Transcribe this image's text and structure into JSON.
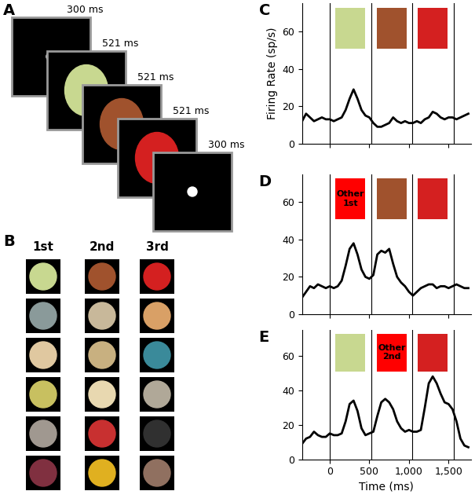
{
  "diagram": {
    "panel": "A",
    "frames": [
      {
        "duration": "300 ms"
      },
      {
        "duration": "521 ms"
      },
      {
        "duration": "521 ms"
      },
      {
        "duration": "521 ms"
      },
      {
        "duration": "300 ms"
      }
    ]
  },
  "image_grid": {
    "panel": "B",
    "columns": [
      "1st",
      "2nd",
      "3rd"
    ]
  },
  "chart_data": [
    {
      "type": "line",
      "panel": "C",
      "ylabel": "Firing Rate (sp/s)",
      "color": "#000000",
      "x": [
        -350,
        -300,
        -250,
        -200,
        -150,
        -100,
        -50,
        0,
        50,
        100,
        150,
        200,
        250,
        300,
        350,
        400,
        450,
        500,
        550,
        600,
        650,
        700,
        750,
        800,
        850,
        900,
        950,
        1000,
        1050,
        1100,
        1150,
        1200,
        1250,
        1300,
        1350,
        1400,
        1450,
        1500,
        1550,
        1600,
        1650,
        1700,
        1750
      ],
      "values": [
        12,
        16,
        14,
        12,
        13,
        14,
        13,
        13,
        12,
        13,
        14,
        18,
        24,
        29,
        24,
        18,
        15,
        14,
        11,
        9,
        9,
        10,
        11,
        14,
        12,
        11,
        12,
        11,
        11,
        12,
        11,
        13,
        14,
        17,
        16,
        14,
        13,
        14,
        14,
        13,
        14,
        15,
        16
      ],
      "xlim": [
        -350,
        1780
      ],
      "ylim": [
        0,
        75
      ],
      "xticks": [
        0,
        500,
        {
          "value": 1000,
          "label": "1,000"
        },
        {
          "value": 1500,
          "label": "1,500"
        }
      ],
      "yticks": [
        0,
        20,
        40,
        60
      ],
      "tick_labels": "y",
      "stimuli": [
        {
          "start": 0,
          "end": 521,
          "color": "#c8d890"
        },
        {
          "start": 521,
          "end": 1042,
          "color": "#a0522d"
        },
        {
          "start": 1042,
          "end": 1563,
          "color": "#d42020"
        }
      ]
    },
    {
      "type": "line",
      "panel": "D",
      "color": "#000000",
      "x": [
        -350,
        -300,
        -250,
        -200,
        -150,
        -100,
        -50,
        0,
        50,
        100,
        150,
        200,
        250,
        300,
        350,
        400,
        450,
        500,
        550,
        600,
        650,
        700,
        750,
        800,
        850,
        900,
        950,
        1000,
        1050,
        1100,
        1150,
        1200,
        1250,
        1300,
        1350,
        1400,
        1450,
        1500,
        1550,
        1600,
        1650,
        1700,
        1750
      ],
      "values": [
        9,
        12,
        15,
        14,
        16,
        15,
        14,
        15,
        14,
        15,
        18,
        26,
        35,
        38,
        32,
        24,
        20,
        19,
        21,
        32,
        34,
        33,
        35,
        27,
        20,
        17,
        15,
        12,
        10,
        12,
        14,
        15,
        16,
        16,
        14,
        15,
        15,
        14,
        15,
        16,
        15,
        14,
        14
      ],
      "xlim": [
        -350,
        1780
      ],
      "ylim": [
        0,
        75
      ],
      "xticks": [
        0,
        500,
        {
          "value": 1000,
          "label": "1,000"
        },
        {
          "value": 1500,
          "label": "1,500"
        }
      ],
      "yticks": [
        0,
        20,
        40,
        60
      ],
      "tick_labels": "y",
      "stimuli": [
        {
          "start": 0,
          "end": 521,
          "color": "#ff0000",
          "label": "Other 1st"
        },
        {
          "start": 521,
          "end": 1042,
          "color": "#a0522d"
        },
        {
          "start": 1042,
          "end": 1563,
          "color": "#d42020"
        }
      ]
    },
    {
      "type": "line",
      "panel": "E",
      "xlabel": "Time (ms)",
      "color": "#000000",
      "x": [
        -350,
        -300,
        -250,
        -200,
        -150,
        -100,
        -50,
        0,
        50,
        100,
        150,
        200,
        250,
        300,
        350,
        400,
        450,
        500,
        550,
        600,
        650,
        700,
        750,
        800,
        850,
        900,
        950,
        1000,
        1050,
        1100,
        1150,
        1200,
        1250,
        1300,
        1350,
        1400,
        1450,
        1500,
        1550,
        1600,
        1650,
        1700,
        1750
      ],
      "values": [
        9,
        12,
        13,
        16,
        14,
        13,
        13,
        15,
        14,
        14,
        15,
        22,
        32,
        34,
        28,
        18,
        14,
        15,
        16,
        25,
        33,
        35,
        33,
        29,
        22,
        18,
        16,
        17,
        16,
        16,
        17,
        30,
        44,
        48,
        44,
        38,
        33,
        32,
        29,
        22,
        12,
        8,
        7
      ],
      "xlim": [
        -350,
        1780
      ],
      "ylim": [
        0,
        75
      ],
      "xticks": [
        0,
        500,
        {
          "value": 1000,
          "label": "1,000"
        },
        {
          "value": 1500,
          "label": "1,500"
        }
      ],
      "yticks": [
        0,
        20,
        40,
        60
      ],
      "stimuli": [
        {
          "start": 0,
          "end": 521,
          "color": "#c8d890"
        },
        {
          "start": 521,
          "end": 1042,
          "color": "#ff0000",
          "label": "Other 2nd"
        },
        {
          "start": 1042,
          "end": 1563,
          "color": "#d42020"
        }
      ]
    }
  ]
}
